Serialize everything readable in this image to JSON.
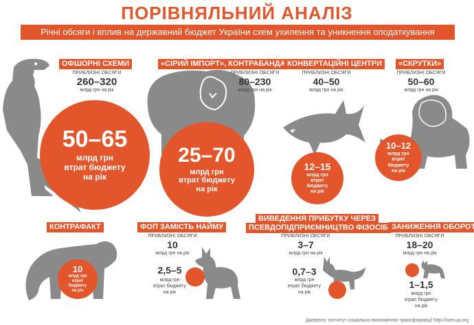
{
  "title": "ПОРІВНЯЛЬНИЙ АНАЛІЗ",
  "subtitle": "Річні обсяги і вплив на державний бюджет України схем ухилення та уникнення оподаткування",
  "colors": {
    "accent": "#e3552b",
    "animal": "#8a8a8a",
    "text": "#333333"
  },
  "schemes": [
    {
      "label": "ОФШОРНІ СХЕМИ",
      "vol_caption": "ПРИБЛИЗНІ ОБСЯГИ",
      "volume": "260–320",
      "unit": "млрд грн на рік",
      "loss": "50–65",
      "loss_l1": "млрд грн",
      "loss_l2": "втрат бюджету",
      "loss_l3": "на рік",
      "icon": "dinosaur-icon"
    },
    {
      "label": "«СІРИЙ ІМПОРТ», КОНТРАБАНДА",
      "vol_caption": "ПРИБЛИЗНІ ОБСЯГИ",
      "volume": "80–230",
      "unit": "млрд грн на рік",
      "loss": "25–70",
      "loss_l1": "млрд грн",
      "loss_l2": "втрат бюджету",
      "loss_l3": "на рік",
      "icon": "bear-icon"
    },
    {
      "label": "КОНВЕРТАЦІЙНІ ЦЕНТРИ",
      "vol_caption": "ПРИБЛИЗНІ ОБСЯГИ",
      "volume": "40–50",
      "unit": "млрд грн на рік",
      "loss": "12–15",
      "loss_l1": "млрд грн",
      "loss_l2": "втрат",
      "loss_l3": "бюджету",
      "loss_l4": "на рік",
      "icon": "shark-icon"
    },
    {
      "label": "«СКРУТКИ»",
      "vol_caption": "ПРИБЛИЗНІ ОБСЯГИ",
      "volume": "50–60",
      "unit": "млрд грн на рік",
      "loss": "10–12",
      "loss_l1": "млрд грн",
      "loss_l2": "втрат",
      "loss_l3": "бюджету",
      "loss_l4": "на рік",
      "icon": "lion-icon"
    },
    {
      "label": "КОНТРАФАКТ",
      "loss": "10",
      "loss_l1": "млрд грн",
      "loss_l2": "втрат",
      "loss_l3": "бюджету",
      "loss_l4": "на рік",
      "icon": "tiger-icon"
    },
    {
      "label": "ФОП ЗАМІСТЬ НАЙМУ",
      "vol_caption": "ПРИБЛИЗНІ ОБСЯГИ",
      "volume": "10",
      "unit": "млрд грн на рік",
      "loss": "2,5–5",
      "loss_l1": "млрд грн",
      "loss_l2": "втрат бюджету",
      "loss_l3": "на рік",
      "icon": "dog-icon"
    },
    {
      "label_l1": "ВИВЕДЕННЯ ПРИБУТКУ ЧЕРЕЗ",
      "label_l2": "ПСЕВДОПІДПРИЄМНИЦТВО ФІЗОСІБ",
      "vol_caption": "ПРИБЛИЗНІ ОБСЯГИ",
      "volume": "3–7",
      "unit": "млрд грн на рік",
      "loss": "0,7–3",
      "loss_l1": "млрд грн",
      "loss_l2": "втрат бюджету",
      "loss_l3": "на рік",
      "icon": "fox-icon"
    },
    {
      "label": "ЗАНИЖЕННЯ ОБОРОТІВ",
      "vol_caption": "ПРИБЛИЗНІ ОБСЯГИ",
      "volume": "18–20",
      "unit": "млрд грн на рік",
      "loss": "1–1,5",
      "loss_l1": "млрд грн",
      "loss_l2": "втрат бюджету",
      "loss_l3": "на рік",
      "icon": "cat-icon"
    }
  ],
  "source": "Джерело: Інститут соціально-економічної трансформації http://iset-ua.org"
}
